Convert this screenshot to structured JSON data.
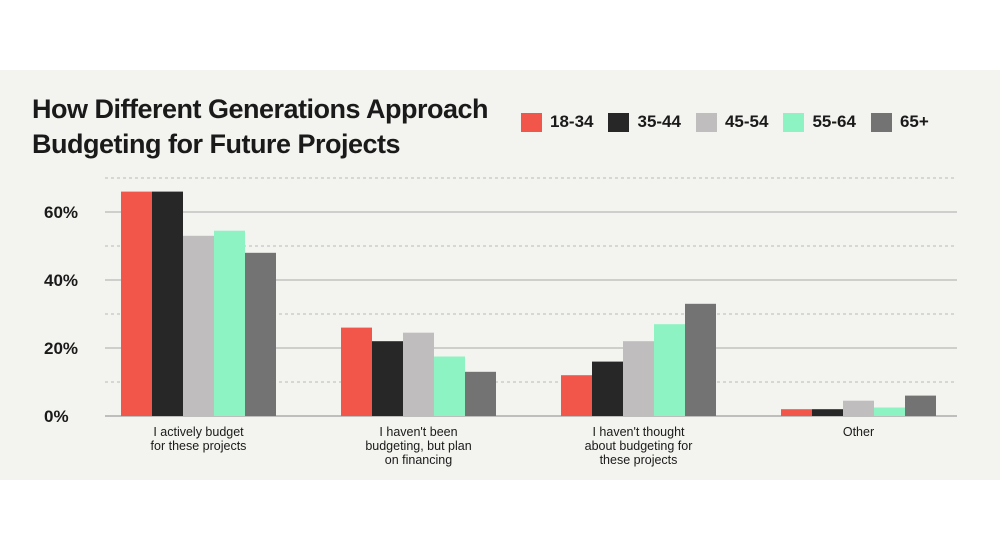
{
  "chart_data": {
    "type": "bar",
    "title": [
      "How Different Generations Approach",
      "Budgeting for Future Projects"
    ],
    "categories": [
      [
        "I actively budget",
        "for these projects"
      ],
      [
        "I haven't been",
        "budgeting, but plan",
        "on financing"
      ],
      [
        "I haven't thought",
        "about budgeting for",
        "these projects"
      ],
      [
        "Other"
      ]
    ],
    "series": [
      {
        "name": "18-34",
        "color": "#f2564a",
        "values": [
          66,
          26,
          12,
          2
        ]
      },
      {
        "name": "35-44",
        "color": "#272727",
        "values": [
          66,
          22,
          16,
          2
        ]
      },
      {
        "name": "45-54",
        "color": "#bfbdbe",
        "values": [
          53,
          24.5,
          22,
          4.5
        ]
      },
      {
        "name": "55-64",
        "color": "#8ef3c2",
        "values": [
          54.5,
          17.5,
          27,
          2.5
        ]
      },
      {
        "name": "65+",
        "color": "#737373",
        "values": [
          48,
          13,
          33,
          6
        ]
      }
    ],
    "y_ticks": [
      {
        "value": 60,
        "label": "60%"
      },
      {
        "value": 40,
        "label": "40%"
      },
      {
        "value": 20,
        "label": "20%"
      },
      {
        "value": 0,
        "label": "0%"
      }
    ],
    "ylim": [
      0,
      70
    ],
    "xlabel": "",
    "ylabel": "",
    "grid": true,
    "legend": "top-right"
  }
}
